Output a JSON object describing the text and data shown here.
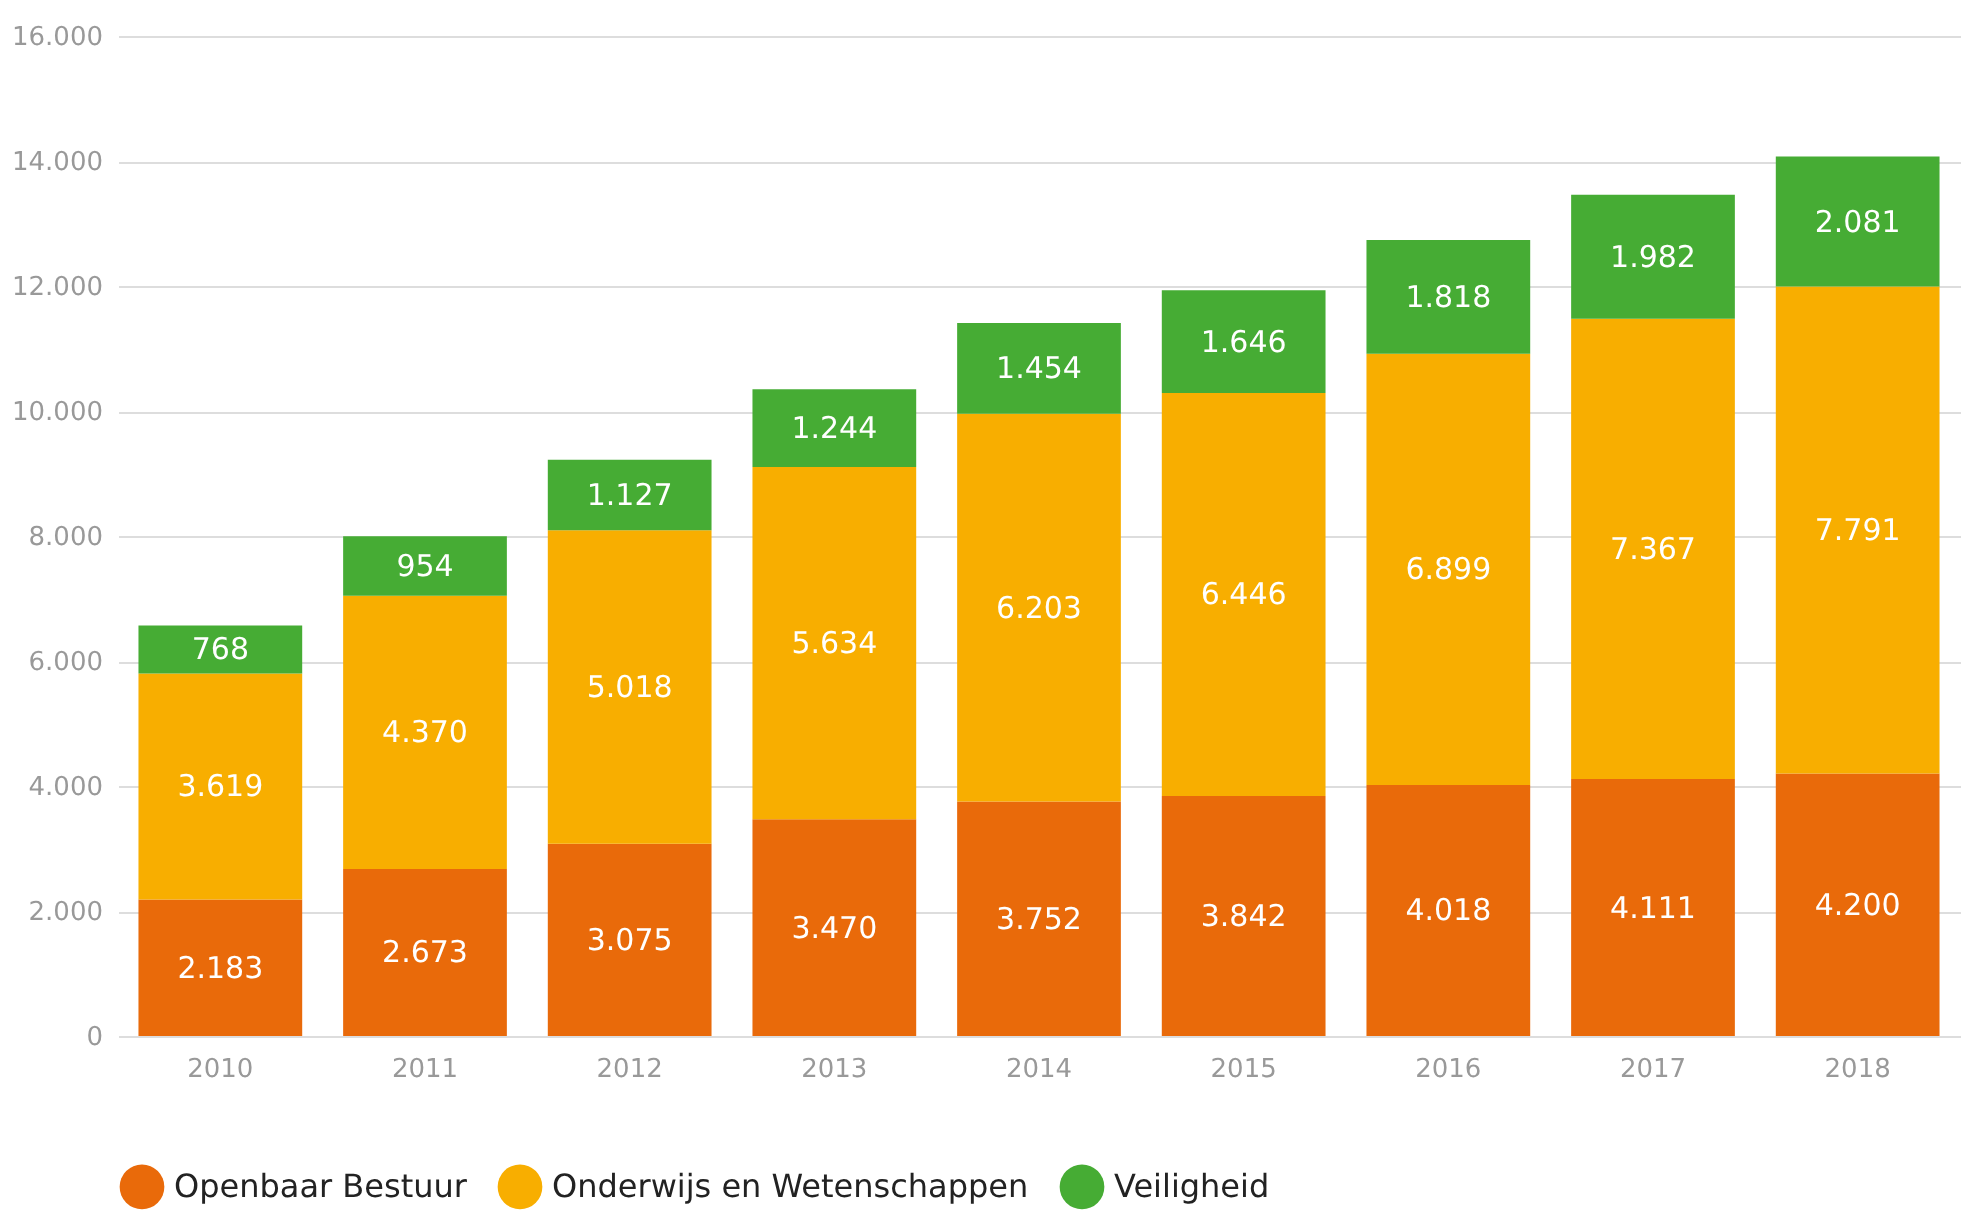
{
  "chart_data": {
    "type": "bar",
    "stacked": true,
    "categories": [
      "2010",
      "2011",
      "2012",
      "2013",
      "2014",
      "2015",
      "2016",
      "2017",
      "2018"
    ],
    "series": [
      {
        "name": "Openbaar Bestuur",
        "color": "#e96a0a",
        "values": [
          2183,
          2673,
          3075,
          3470,
          3752,
          3842,
          4018,
          4111,
          4200
        ],
        "value_labels": [
          "2.183",
          "2.673",
          "3.075",
          "3.470",
          "3.752",
          "3.842",
          "4.018",
          "4.111",
          "4.200"
        ]
      },
      {
        "name": "Onderwijs en Wetenschappen",
        "color": "#f8ae00",
        "values": [
          3619,
          4370,
          5018,
          5634,
          6203,
          6446,
          6899,
          7367,
          7791
        ],
        "value_labels": [
          "3.619",
          "4.370",
          "5.018",
          "5.634",
          "6.203",
          "6.446",
          "6.899",
          "7.367",
          "7.791"
        ]
      },
      {
        "name": "Veiligheid",
        "color": "#46ac34",
        "values": [
          768,
          954,
          1127,
          1244,
          1454,
          1646,
          1818,
          1982,
          2081
        ],
        "value_labels": [
          "768",
          "954",
          "1.127",
          "1.244",
          "1.454",
          "1.646",
          "1.818",
          "1.982",
          "2.081"
        ]
      }
    ],
    "ylim": [
      0,
      16000
    ],
    "yticks": [
      {
        "value": 0,
        "label": "0"
      },
      {
        "value": 2000,
        "label": "2.000"
      },
      {
        "value": 4000,
        "label": "4.000"
      },
      {
        "value": 6000,
        "label": "6.000"
      },
      {
        "value": 8000,
        "label": "8.000"
      },
      {
        "value": 10000,
        "label": "10.000"
      },
      {
        "value": 12000,
        "label": "12.000"
      },
      {
        "value": 14000,
        "label": "14.000"
      },
      {
        "value": 16000,
        "label": "16.000"
      }
    ],
    "grid": "y",
    "legend": "bottom"
  }
}
